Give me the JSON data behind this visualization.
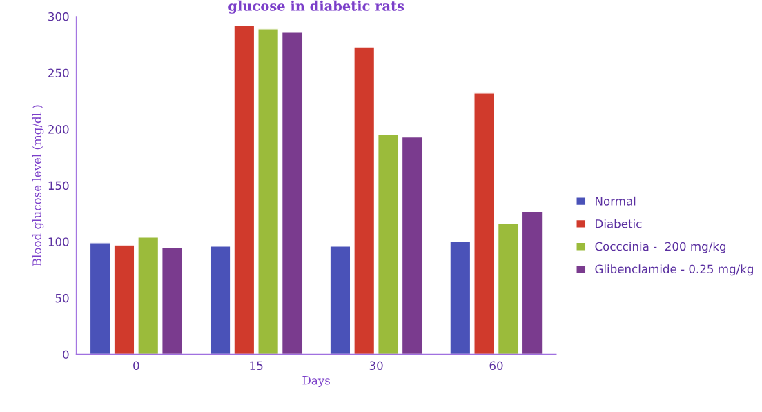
{
  "chart_data": {
    "type": "bar",
    "title": "glucose in diabetic rats",
    "xlabel": "Days",
    "ylabel": "Blood glucose level (mg/dl )",
    "categories": [
      "0",
      "15",
      "30",
      "60"
    ],
    "series": [
      {
        "name": "Normal",
        "color": "#4a52b8",
        "values": [
          99,
          96,
          96,
          100
        ]
      },
      {
        "name": "Diabetic",
        "color": "#d03a2c",
        "values": [
          97,
          292,
          273,
          232
        ]
      },
      {
        "name": "Cocccinia -  200 mg/kg",
        "color": "#9bbb3b",
        "values": [
          104,
          289,
          195,
          116
        ]
      },
      {
        "name": "Glibenclamide - 0.25 mg/kg",
        "color": "#7a3b8e",
        "values": [
          95,
          286,
          193,
          127
        ]
      }
    ],
    "ylim": [
      0,
      300
    ],
    "yticks": [
      0,
      50,
      100,
      150,
      200,
      250,
      300
    ],
    "grid": false,
    "legend": "right"
  }
}
